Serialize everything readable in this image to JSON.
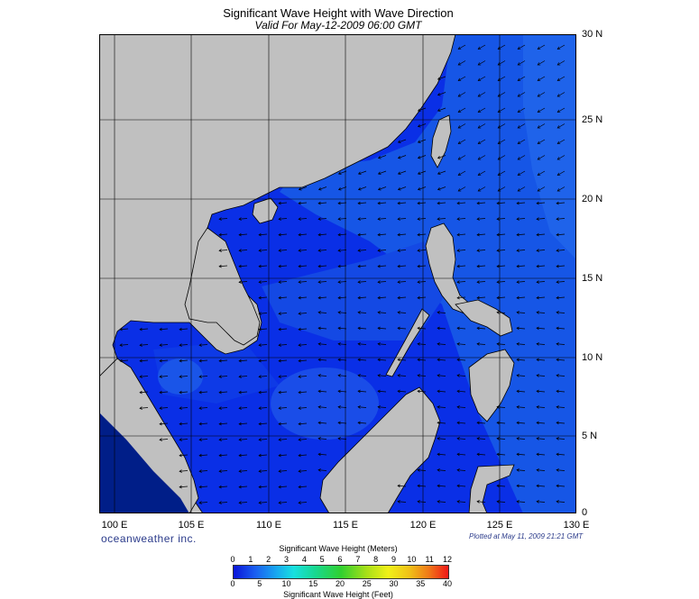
{
  "header": {
    "title": "Significant Wave Height with Wave Direction",
    "subtitle": "Valid For May-12-2009 06:00 GMT"
  },
  "axes": {
    "lat_labels": [
      "30 N",
      "25 N",
      "20 N",
      "15 N",
      "10 N",
      "5 N",
      "0"
    ],
    "lon_labels": [
      "100 E",
      "105 E",
      "110 E",
      "115 E",
      "120 E",
      "125 E",
      "130 E"
    ],
    "lat_range": [
      0,
      30
    ],
    "lon_range": [
      99,
      130
    ],
    "grid": true
  },
  "footer": {
    "brand": "oceanweather inc.",
    "plotted": "Plotted at May 11, 2009 21:21 GMT"
  },
  "legend": {
    "title_meters": "Significant Wave Height (Meters)",
    "meters_ticks": [
      "0",
      "1",
      "2",
      "3",
      "4",
      "5",
      "6",
      "7",
      "8",
      "9",
      "10",
      "11",
      "12"
    ],
    "title_feet": "Significant Wave Height (Feet)",
    "feet_ticks": [
      "0",
      "5",
      "10",
      "15",
      "20",
      "25",
      "30",
      "35",
      "40"
    ]
  },
  "colors": {
    "land": "#c0c0c0",
    "ocean_base": "#0a2fe6",
    "ocean_high": "#1f6ee8",
    "arrow": "#000000",
    "grid": "#000000"
  }
}
